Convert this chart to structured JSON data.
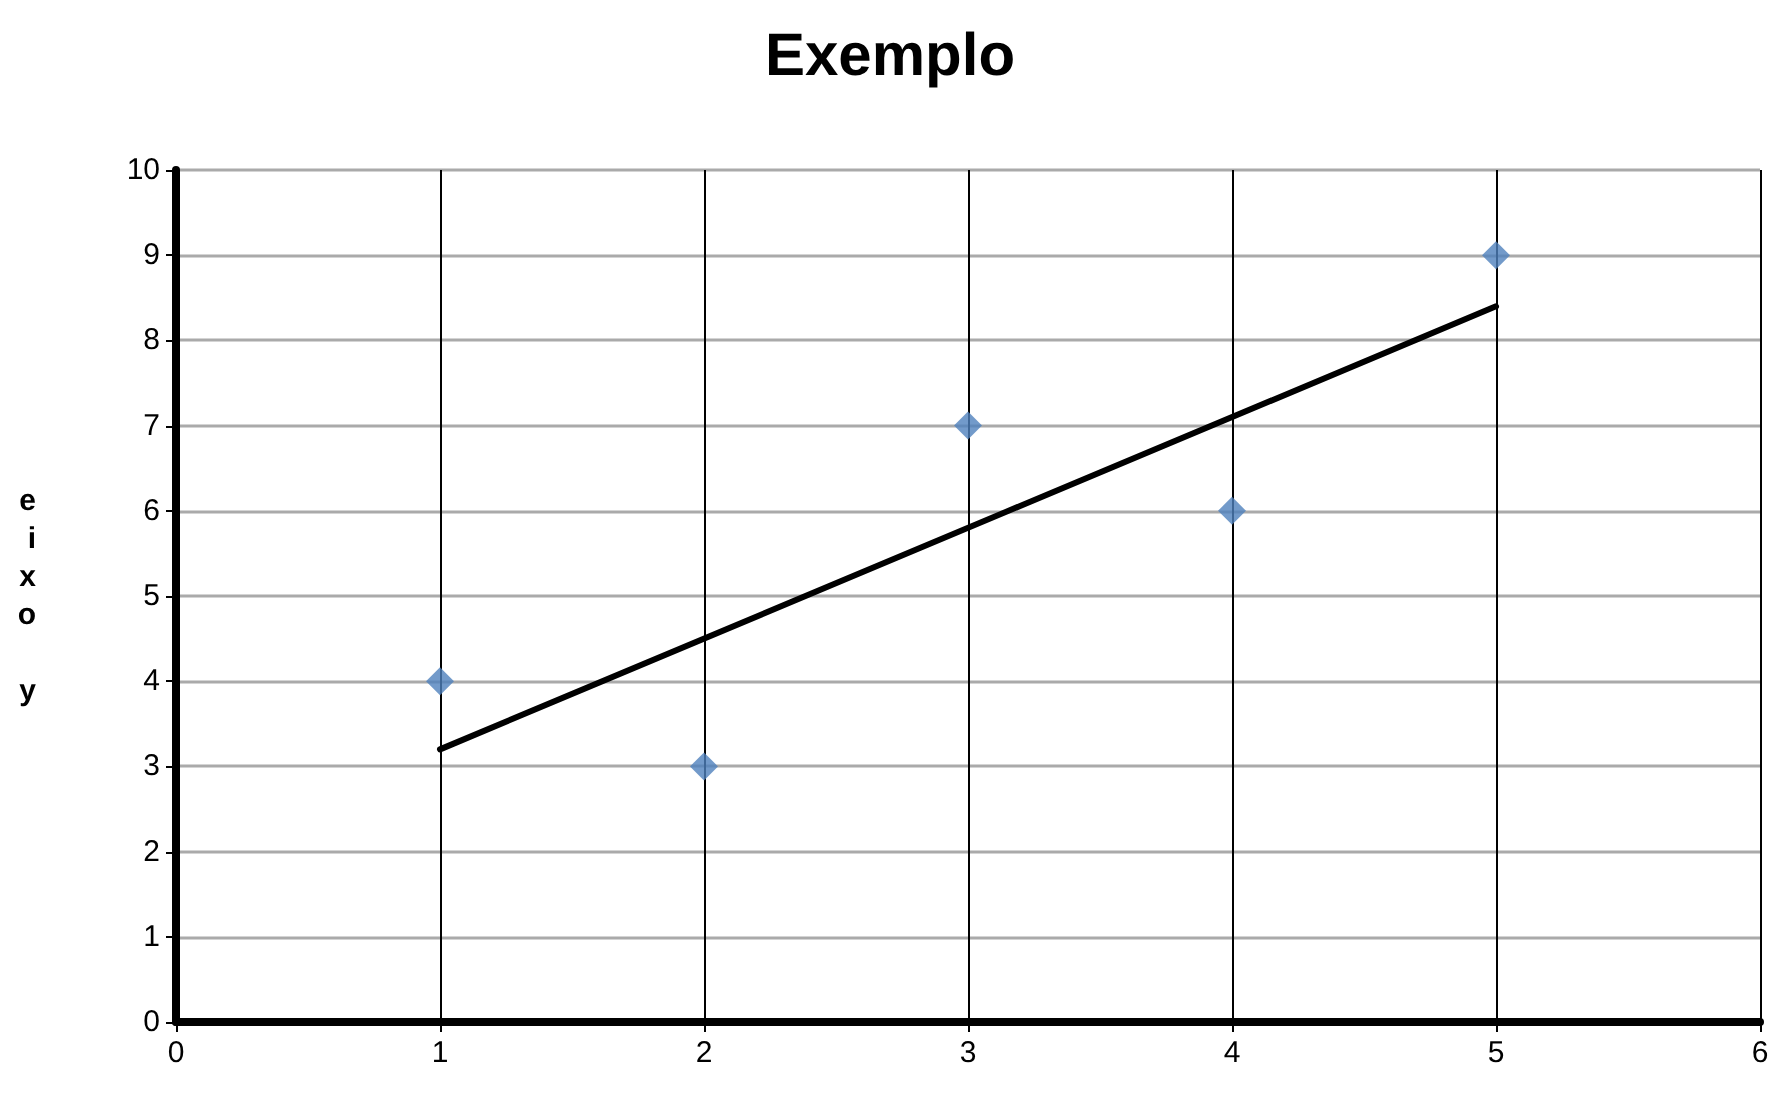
{
  "chart_data": {
    "type": "scatter",
    "title": "Exemplo",
    "ylabel": "eixo y",
    "series": [
      {
        "color": "#4f81bd",
        "marker": "diamond",
        "x": [
          1,
          2,
          3,
          4,
          5
        ],
        "values": [
          4,
          3,
          7,
          6,
          9
        ]
      },
      {
        "type": "line",
        "color": "#000000",
        "marker": "none",
        "line_style": "solid",
        "x": [
          1,
          5
        ],
        "values": [
          3.2,
          8.4
        ]
      }
    ],
    "xlim": [
      0,
      6
    ],
    "xticks": [
      0,
      1,
      2,
      3,
      4,
      5,
      6
    ],
    "ylim": [
      0,
      10
    ],
    "yticks": [
      0,
      1,
      2,
      3,
      4,
      5,
      6,
      7,
      8,
      9,
      10
    ],
    "grid": true
  }
}
